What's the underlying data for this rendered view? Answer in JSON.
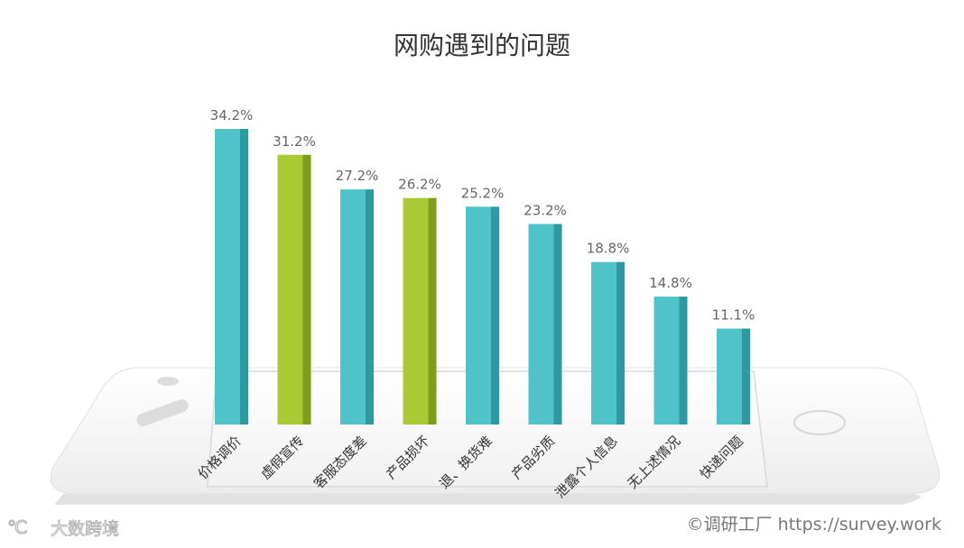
{
  "chart_data": {
    "type": "bar",
    "title": "网购遇到的问题",
    "categories": [
      "价格调价",
      "虚假宣传",
      "客服态度差",
      "产品损坏",
      "退、换货难",
      "产品劣质",
      "泄露个人信息",
      "无上述情况",
      "快递问题"
    ],
    "values": [
      34.2,
      31.2,
      27.2,
      26.2,
      25.2,
      23.2,
      18.8,
      14.8,
      11.1
    ],
    "value_labels": [
      "34.2%",
      "31.2%",
      "27.2%",
      "26.2%",
      "25.2%",
      "23.2%",
      "18.8%",
      "14.8%",
      "11.1%"
    ],
    "highlight_categories": [
      "虚假宣传",
      "产品损坏"
    ],
    "xlabel": "",
    "ylabel": "",
    "ylim": [
      0,
      34.2
    ],
    "grid": false,
    "legend": "none"
  },
  "colors": {
    "bar_default": "#4fc3c8",
    "bar_default_side": "#2e9aa0",
    "bar_highlight": "#a9c935",
    "bar_highlight_side": "#7f9c1c",
    "label_text": "#666666",
    "title_text": "#333333"
  },
  "watermark_left": "大数跨境",
  "watermark_right": "©调研工厂 https://survey.work"
}
